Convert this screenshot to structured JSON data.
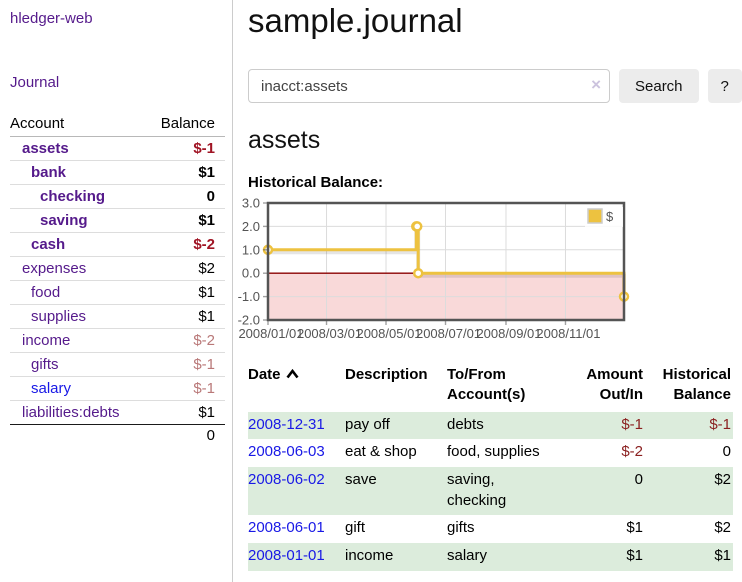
{
  "brand": "hledger-web",
  "nav": {
    "journal": "Journal"
  },
  "sidebar": {
    "account_header": "Account",
    "balance_header": "Balance",
    "rows": [
      {
        "name": "assets",
        "indent": 0,
        "bold": true,
        "link_color": "purple",
        "balance": "$-1",
        "balance_style": "neg-strong"
      },
      {
        "name": "bank",
        "indent": 1,
        "bold": true,
        "link_color": "purple",
        "balance": "$1",
        "balance_style": "pos"
      },
      {
        "name": "checking",
        "indent": 2,
        "bold": true,
        "link_color": "purple",
        "balance": "0",
        "balance_style": "pos"
      },
      {
        "name": "saving",
        "indent": 2,
        "bold": true,
        "link_color": "purple",
        "balance": "$1",
        "balance_style": "pos"
      },
      {
        "name": "cash",
        "indent": 1,
        "bold": true,
        "link_color": "purple",
        "balance": "$-2",
        "balance_style": "neg-strong"
      },
      {
        "name": "expenses",
        "indent": 0,
        "bold": false,
        "link_color": "purple",
        "balance": "$2",
        "balance_style": "pos"
      },
      {
        "name": "food",
        "indent": 1,
        "bold": false,
        "link_color": "purple",
        "balance": "$1",
        "balance_style": "pos"
      },
      {
        "name": "supplies",
        "indent": 1,
        "bold": false,
        "link_color": "purple",
        "balance": "$1",
        "balance_style": "pos"
      },
      {
        "name": "income",
        "indent": 0,
        "bold": false,
        "link_color": "purple",
        "balance": "$-2",
        "balance_style": "neg-muted"
      },
      {
        "name": "gifts",
        "indent": 1,
        "bold": false,
        "link_color": "purple",
        "balance": "$-1",
        "balance_style": "neg-muted"
      },
      {
        "name": "salary",
        "indent": 1,
        "bold": false,
        "link_color": "blue",
        "balance": "$-1",
        "balance_style": "neg-muted"
      },
      {
        "name": "liabilities:debts",
        "indent": 0,
        "bold": false,
        "link_color": "purple",
        "balance": "$1",
        "balance_style": "pos",
        "last": true
      }
    ],
    "total": "0"
  },
  "main": {
    "title": "sample.journal",
    "search": {
      "value": "inacct:assets",
      "clear_icon": "×",
      "search_button": "Search",
      "help_button": "?"
    },
    "section_title": "assets",
    "chart_title": "Historical Balance:"
  },
  "icons": {
    "sort_asc": "chevron-up",
    "clear": "x-cross",
    "legend_swatch": "yellow-square"
  },
  "chart_data": {
    "type": "line",
    "title": "Historical Balance",
    "legend": [
      {
        "label": "$",
        "color": "#edc240"
      }
    ],
    "legend_position": "top-right",
    "grid": true,
    "x_ticks": [
      "2008/01/01",
      "2008/03/01",
      "2008/05/01",
      "2008/07/01",
      "2008/09/01",
      "2008/11/01"
    ],
    "x_tick_days": [
      0,
      60,
      121,
      182,
      244,
      305
    ],
    "x_range_days": [
      0,
      365
    ],
    "y_ticks": [
      3.0,
      2.0,
      1.0,
      0.0,
      -1.0,
      -2.0
    ],
    "ylim": [
      -2,
      3
    ],
    "series": [
      {
        "name": "$",
        "style": "steps",
        "color": "#edc240",
        "points": [
          {
            "date": "2008-01-01",
            "day": 0,
            "value": 1
          },
          {
            "date": "2008-06-01",
            "day": 152,
            "value": 2
          },
          {
            "date": "2008-06-02",
            "day": 153,
            "value": 2
          },
          {
            "date": "2008-06-03",
            "day": 154,
            "value": 0
          },
          {
            "date": "2008-12-31",
            "day": 365,
            "value": -1
          }
        ]
      }
    ],
    "negative_region_fill": "#f9d9d9",
    "zero_line_color": "#8b0000",
    "border_color": "#545454",
    "gridline_color": "#dcdcdc",
    "axis_text_color": "#545454"
  },
  "table": {
    "headers": {
      "date": "Date",
      "description": "Description",
      "tofrom_line1": "To/From",
      "tofrom_line2": "Account(s)",
      "amount_line1": "Amount",
      "amount_line2": "Out/In",
      "balance_line1": "Historical",
      "balance_line2": "Balance"
    },
    "rows": [
      {
        "date": "2008-12-31",
        "description": "pay off",
        "accounts": "debts",
        "amount": "$-1",
        "amount_neg": true,
        "balance": "$-1",
        "balance_neg": true
      },
      {
        "date": "2008-06-03",
        "description": "eat & shop",
        "accounts": "food, supplies",
        "amount": "$-2",
        "amount_neg": true,
        "balance": "0",
        "balance_neg": false
      },
      {
        "date": "2008-06-02",
        "description": "save",
        "accounts": "saving, checking",
        "amount": "0",
        "amount_neg": false,
        "balance": "$2",
        "balance_neg": false
      },
      {
        "date": "2008-06-01",
        "description": "gift",
        "accounts": "gifts",
        "amount": "$1",
        "amount_neg": false,
        "balance": "$2",
        "balance_neg": false
      },
      {
        "date": "2008-01-01",
        "description": "income",
        "accounts": "salary",
        "amount": "$1",
        "amount_neg": false,
        "balance": "$1",
        "balance_neg": false
      }
    ],
    "stripe_color": "#dcecdc"
  }
}
